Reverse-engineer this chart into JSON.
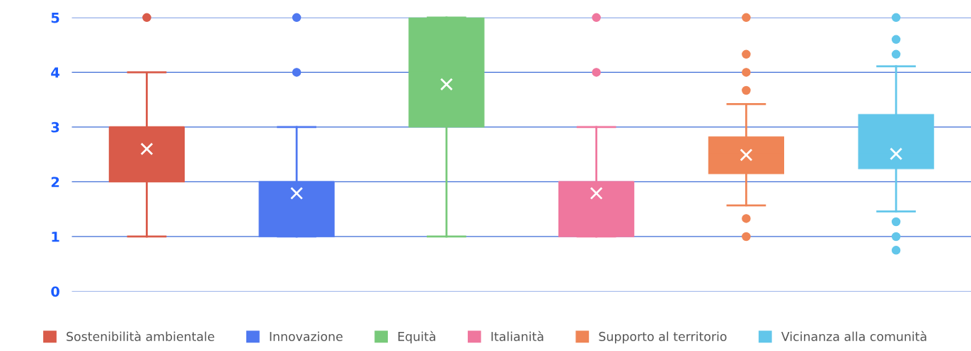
{
  "chart_data": {
    "type": "box",
    "categories": [
      null,
      null,
      null,
      null,
      null,
      null
    ],
    "series": [
      {
        "name": "Sostenibilità ambientale",
        "color": "#d95b4a",
        "boxes": [
          {
            "low": 1,
            "q1": 2,
            "median": 3,
            "q3": 3,
            "high": 4,
            "mean": 2.6,
            "outliers": [
              5
            ]
          },
          null,
          null,
          null,
          null,
          null
        ]
      },
      {
        "name": "Innovazione",
        "color": "#4f78f0",
        "boxes": [
          null,
          {
            "low": 1,
            "q1": 1,
            "median": 2,
            "q3": 2,
            "high": 3,
            "mean": 1.79,
            "outliers": [
              4,
              5
            ]
          },
          null,
          null,
          null,
          null
        ]
      },
      {
        "name": "Equità",
        "color": "#78c97a",
        "boxes": [
          null,
          null,
          {
            "low": 1,
            "q1": 3,
            "median": 4,
            "q3": 5,
            "high": 5,
            "mean": 3.78
          },
          null,
          null,
          null
        ]
      },
      {
        "name": "Italianità",
        "color": "#ef779e",
        "boxes": [
          null,
          null,
          null,
          {
            "low": 1,
            "q1": 1,
            "median": 2,
            "q3": 2,
            "high": 3,
            "mean": 1.79,
            "outliers": [
              4,
              5
            ]
          },
          null,
          null
        ]
      },
      {
        "name": "Supporto al territorio",
        "color": "#ef8556",
        "boxes": [
          null,
          null,
          null,
          null,
          {
            "low": 1.57,
            "q1": 2.15,
            "median": 2.5,
            "q3": 2.82,
            "high": 3.42,
            "mean": 2.49,
            "outliers": [
              5,
              4.33,
              4,
              3.67,
              1.33,
              1
            ]
          },
          null
        ]
      },
      {
        "name": "Vicinanza alla comunità",
        "color": "#62c6ea",
        "boxes": [
          null,
          null,
          null,
          null,
          null,
          {
            "low": 1.46,
            "q1": 2.24,
            "median": 2.5,
            "q3": 3.23,
            "high": 4.11,
            "mean": 2.51,
            "outliers": [
              5,
              4.6,
              4.33,
              1.27,
              1,
              0.75
            ]
          }
        ]
      }
    ],
    "ylim": [
      0,
      5
    ],
    "yticks": [
      0,
      1,
      2,
      3,
      4,
      5
    ],
    "grid": "y",
    "legend": "bottom"
  }
}
